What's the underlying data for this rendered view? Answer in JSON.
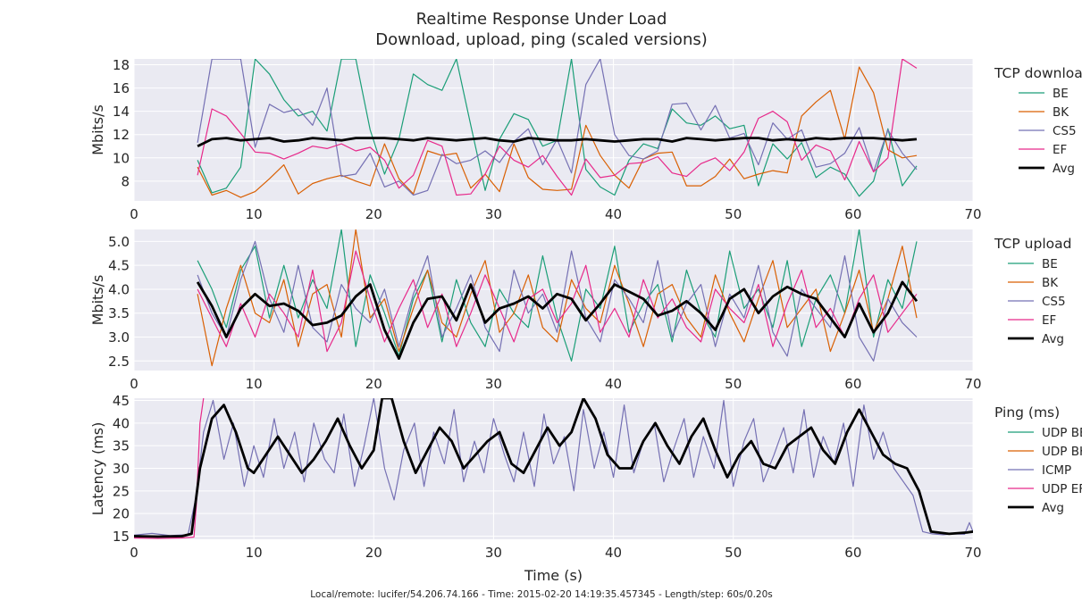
{
  "title": "Realtime Response Under Load",
  "subtitle": "Download, upload, ping (scaled versions)",
  "footer": "Local/remote: lucifer/54.206.74.166 - Time: 2015-02-20 14:19:35.457345 - Length/step: 60s/0.20s",
  "colors": {
    "BE": "#1b9e77",
    "BK": "#d95f02",
    "CS5": "#7570b3",
    "EF": "#e7298a",
    "Avg": "#000000",
    "background": "#eaeaf2",
    "grid": "#ffffff"
  },
  "chart_data": [
    {
      "type": "line",
      "id": "download",
      "ylabel": "Mbits/s",
      "xlim": [
        0,
        70
      ],
      "ylim": [
        6.3,
        18.5
      ],
      "xticks": [
        0,
        10,
        20,
        30,
        40,
        50,
        60,
        70
      ],
      "yticks": [
        8,
        10,
        12,
        14,
        16,
        18
      ],
      "legend_title": "TCP download",
      "legend_position": "right",
      "grid": true,
      "x": [
        5.3,
        6.5,
        7.7,
        8.9,
        10.1,
        11.3,
        12.5,
        13.7,
        14.9,
        16.1,
        17.3,
        18.5,
        19.7,
        20.9,
        22.1,
        23.3,
        24.5,
        25.7,
        26.9,
        28.1,
        29.3,
        30.5,
        31.7,
        32.9,
        34.1,
        35.3,
        36.5,
        37.7,
        38.9,
        40.1,
        41.3,
        42.5,
        43.7,
        44.9,
        46.1,
        47.3,
        48.5,
        49.7,
        50.9,
        52.1,
        53.3,
        54.5,
        55.7,
        56.9,
        58.1,
        59.3,
        60.5,
        61.7,
        62.9,
        64.1,
        65.3
      ],
      "series": [
        {
          "name": "BE",
          "values": [
            9.8,
            7.0,
            7.4,
            9.2,
            18.5,
            17.2,
            15.0,
            13.6,
            14.0,
            12.3,
            18.5,
            18.5,
            12.4,
            8.6,
            11.6,
            17.2,
            16.3,
            15.8,
            18.5,
            12.8,
            7.2,
            11.6,
            13.8,
            13.3,
            11.0,
            11.5,
            18.5,
            9.0,
            7.5,
            6.8,
            9.8,
            11.2,
            10.8,
            14.2,
            13.0,
            12.8,
            13.6,
            12.5,
            12.8,
            7.6,
            11.2,
            9.9,
            11.3,
            8.3,
            9.2,
            8.6,
            6.7,
            8.0,
            12.5,
            7.6,
            9.3
          ]
        },
        {
          "name": "BK",
          "values": [
            9.2,
            6.8,
            7.2,
            6.6,
            7.1,
            8.2,
            9.4,
            6.9,
            7.8,
            8.2,
            8.5,
            8.0,
            7.6,
            11.2,
            8.2,
            6.9,
            10.6,
            10.2,
            10.4,
            7.4,
            8.6,
            7.1,
            11.2,
            8.3,
            7.3,
            7.2,
            7.3,
            12.8,
            10.2,
            8.5,
            7.4,
            9.9,
            10.4,
            10.5,
            7.6,
            7.6,
            8.4,
            9.9,
            8.2,
            8.6,
            8.9,
            8.7,
            13.6,
            14.8,
            15.8,
            11.6,
            17.8,
            15.6,
            10.7,
            10.0,
            10.2
          ]
        },
        {
          "name": "CS5",
          "values": [
            11.3,
            18.5,
            18.5,
            18.5,
            10.9,
            14.6,
            13.9,
            14.2,
            12.8,
            16.0,
            8.4,
            8.6,
            10.4,
            7.5,
            8.0,
            6.8,
            7.2,
            10.3,
            9.5,
            9.8,
            10.6,
            9.6,
            11.4,
            12.5,
            9.4,
            11.6,
            8.7,
            16.3,
            18.5,
            12.0,
            10.2,
            9.9,
            10.6,
            14.6,
            14.7,
            12.4,
            14.5,
            11.7,
            12.1,
            9.4,
            13.0,
            11.6,
            12.4,
            9.2,
            9.5,
            10.4,
            12.6,
            8.8,
            12.4,
            10.4,
            9.0
          ]
        },
        {
          "name": "EF",
          "values": [
            8.5,
            14.2,
            13.6,
            12.1,
            10.5,
            10.4,
            9.9,
            10.4,
            11.0,
            10.8,
            11.2,
            10.6,
            10.9,
            9.8,
            7.4,
            8.5,
            11.5,
            11.0,
            6.8,
            6.9,
            8.6,
            11.0,
            9.8,
            9.2,
            10.2,
            8.4,
            6.8,
            9.9,
            8.3,
            8.5,
            9.5,
            9.6,
            10.1,
            8.7,
            8.4,
            9.5,
            10.0,
            8.9,
            10.5,
            13.4,
            14.0,
            13.1,
            9.8,
            11.1,
            10.6,
            8.1,
            11.4,
            8.8,
            10.0,
            18.5,
            17.7
          ]
        },
        {
          "name": "Avg",
          "values": [
            11.0,
            11.6,
            11.7,
            11.5,
            11.6,
            11.7,
            11.4,
            11.5,
            11.7,
            11.6,
            11.5,
            11.7,
            11.7,
            11.7,
            11.6,
            11.5,
            11.7,
            11.6,
            11.5,
            11.6,
            11.7,
            11.5,
            11.4,
            11.7,
            11.6,
            11.5,
            11.5,
            11.6,
            11.5,
            11.4,
            11.5,
            11.6,
            11.6,
            11.4,
            11.7,
            11.6,
            11.5,
            11.6,
            11.7,
            11.7,
            11.5,
            11.6,
            11.5,
            11.7,
            11.6,
            11.7,
            11.7,
            11.7,
            11.6,
            11.5,
            11.6
          ]
        }
      ]
    },
    {
      "type": "line",
      "id": "upload",
      "ylabel": "Mbits/s",
      "xlim": [
        0,
        70
      ],
      "ylim": [
        2.3,
        5.25
      ],
      "xticks": [
        0,
        10,
        20,
        30,
        40,
        50,
        60,
        70
      ],
      "yticks": [
        2.5,
        3.0,
        3.5,
        4.0,
        4.5,
        5.0
      ],
      "legend_title": "TCP upload",
      "legend_position": "right",
      "grid": true,
      "x": [
        5.3,
        6.5,
        7.7,
        8.9,
        10.1,
        11.3,
        12.5,
        13.7,
        14.9,
        16.1,
        17.3,
        18.5,
        19.7,
        20.9,
        22.1,
        23.3,
        24.5,
        25.7,
        26.9,
        28.1,
        29.3,
        30.5,
        31.7,
        32.9,
        34.1,
        35.3,
        36.5,
        37.7,
        38.9,
        40.1,
        41.3,
        42.5,
        43.7,
        44.9,
        46.1,
        47.3,
        48.5,
        49.7,
        50.9,
        52.1,
        53.3,
        54.5,
        55.7,
        56.9,
        58.1,
        59.3,
        60.5,
        61.7,
        62.9,
        64.1,
        65.3
      ],
      "series": [
        {
          "name": "BE",
          "values": [
            4.6,
            4.0,
            3.2,
            4.4,
            4.9,
            3.4,
            4.5,
            3.4,
            4.2,
            3.6,
            5.25,
            2.8,
            4.3,
            3.5,
            2.6,
            3.8,
            4.4,
            2.9,
            4.2,
            3.3,
            2.8,
            4.0,
            3.5,
            3.2,
            4.7,
            3.4,
            2.5,
            4.0,
            3.6,
            4.9,
            3.1,
            3.7,
            4.1,
            2.9,
            4.4,
            3.5,
            3.0,
            4.8,
            3.6,
            4.0,
            3.2,
            4.6,
            2.8,
            3.8,
            4.3,
            3.5,
            5.25,
            3.0,
            4.2,
            3.6,
            5.0
          ]
        },
        {
          "name": "BK",
          "values": [
            3.9,
            2.4,
            3.6,
            4.5,
            3.5,
            3.3,
            4.2,
            2.8,
            3.9,
            4.1,
            3.0,
            5.25,
            3.4,
            3.8,
            2.7,
            3.6,
            4.4,
            3.3,
            3.0,
            3.9,
            4.6,
            3.1,
            3.5,
            4.3,
            3.2,
            2.9,
            4.2,
            3.6,
            3.3,
            4.5,
            3.7,
            2.8,
            3.9,
            4.1,
            3.4,
            3.0,
            4.3,
            3.5,
            2.9,
            3.8,
            4.6,
            3.2,
            3.6,
            4.0,
            2.7,
            3.5,
            4.4,
            3.1,
            3.8,
            4.9,
            3.4
          ]
        },
        {
          "name": "CS5",
          "values": [
            4.3,
            3.5,
            3.0,
            4.2,
            5.0,
            3.8,
            3.1,
            4.5,
            3.2,
            2.9,
            4.1,
            3.6,
            3.3,
            4.0,
            2.8,
            3.9,
            4.7,
            3.0,
            3.6,
            4.3,
            3.2,
            2.7,
            4.4,
            3.5,
            3.9,
            3.1,
            4.8,
            3.4,
            2.9,
            4.2,
            3.8,
            3.3,
            4.6,
            3.0,
            3.7,
            4.1,
            2.8,
            3.9,
            3.4,
            4.5,
            3.1,
            2.6,
            4.0,
            3.6,
            3.2,
            4.7,
            3.0,
            2.5,
            3.8,
            3.3,
            3.0
          ]
        },
        {
          "name": "EF",
          "values": [
            4.0,
            3.4,
            2.8,
            3.7,
            3.0,
            3.9,
            3.5,
            3.0,
            4.4,
            2.7,
            3.3,
            4.8,
            3.8,
            2.9,
            3.6,
            4.2,
            3.2,
            3.9,
            2.8,
            3.5,
            4.3,
            3.6,
            2.9,
            3.8,
            4.0,
            3.3,
            3.7,
            4.5,
            3.1,
            3.6,
            3.0,
            4.2,
            3.4,
            3.8,
            3.2,
            2.9,
            4.0,
            3.6,
            3.3,
            4.1,
            2.8,
            3.7,
            4.4,
            3.2,
            3.6,
            3.0,
            3.8,
            4.3,
            3.1,
            3.5,
            3.9
          ]
        },
        {
          "name": "Avg",
          "values": [
            4.15,
            3.65,
            3.0,
            3.6,
            3.9,
            3.65,
            3.7,
            3.55,
            3.25,
            3.3,
            3.45,
            3.85,
            4.1,
            3.15,
            2.55,
            3.3,
            3.8,
            3.85,
            3.35,
            4.1,
            3.3,
            3.6,
            3.7,
            3.85,
            3.6,
            3.9,
            3.8,
            3.35,
            3.7,
            4.1,
            3.95,
            3.8,
            3.45,
            3.55,
            3.75,
            3.5,
            3.15,
            3.8,
            4.0,
            3.5,
            3.85,
            4.05,
            3.9,
            3.8,
            3.4,
            3.0,
            3.7,
            3.1,
            3.5,
            4.15,
            3.75
          ]
        }
      ]
    },
    {
      "type": "line",
      "id": "ping",
      "ylabel": "Latency (ms)",
      "xlabel": "Time (s)",
      "xlim": [
        0,
        70
      ],
      "ylim": [
        14.3,
        45.5
      ],
      "xticks": [
        0,
        10,
        20,
        30,
        40,
        50,
        60,
        70
      ],
      "yticks": [
        15,
        20,
        25,
        30,
        35,
        40,
        45
      ],
      "legend_title": "Ping (ms)",
      "legend_position": "right",
      "grid": true,
      "series": [
        {
          "name": "UDP BE",
          "x": [],
          "values": []
        },
        {
          "name": "UDP BK",
          "x": [],
          "values": []
        },
        {
          "name": "ICMP",
          "x": [
            0,
            1.5,
            3,
            4.5,
            5.2,
            5.8,
            6.6,
            7.5,
            8.3,
            9.2,
            10,
            10.8,
            11.7,
            12.5,
            13.4,
            14.2,
            15,
            15.9,
            16.7,
            17.5,
            18.4,
            19.2,
            20,
            20.9,
            21.7,
            22.5,
            23.4,
            24.2,
            25,
            25.9,
            26.7,
            27.5,
            28.4,
            29.2,
            30,
            30.9,
            31.7,
            32.5,
            33.4,
            34.2,
            35,
            35.9,
            36.7,
            37.5,
            38.4,
            39.2,
            40,
            40.9,
            41.7,
            42.5,
            43.4,
            44.2,
            45,
            45.9,
            46.7,
            47.5,
            48.4,
            49.2,
            50,
            50.9,
            51.7,
            52.5,
            53.4,
            54.2,
            55,
            55.9,
            56.7,
            57.5,
            58.4,
            59.2,
            60,
            60.9,
            61.7,
            62.5,
            63.4,
            64.2,
            65,
            65.8,
            66.6,
            67.5,
            68.4,
            69.3,
            69.7,
            70
          ],
          "values": [
            15.2,
            15.6,
            15.1,
            15.3,
            24,
            38,
            45,
            32,
            40,
            26,
            35,
            28,
            41,
            30,
            38,
            27,
            40,
            32,
            29,
            42,
            26,
            35,
            45.5,
            30,
            23,
            34,
            40,
            26,
            38,
            31,
            43,
            27,
            36,
            29,
            41,
            33,
            27,
            38,
            26,
            42,
            31,
            37,
            25,
            43,
            30,
            38,
            28,
            44,
            29,
            36,
            40,
            27,
            34,
            41,
            28,
            37,
            30,
            45,
            26,
            36,
            41,
            27,
            33,
            39,
            29,
            43,
            28,
            37,
            31,
            40,
            26,
            44,
            32,
            38,
            30,
            27,
            24,
            16,
            15.5,
            15.3,
            15.5,
            15.4,
            18,
            16
          ]
        },
        {
          "name": "UDP EF",
          "x": [
            0,
            2,
            4,
            5.0,
            5.2,
            5.5,
            5.8
          ],
          "values": [
            14.6,
            14.5,
            14.6,
            14.8,
            22,
            40,
            45.5
          ]
        },
        {
          "name": "Avg",
          "x": [
            0,
            2,
            4,
            4.8,
            5.5,
            6.5,
            7.5,
            8.5,
            9.5,
            10,
            11,
            12,
            13,
            14,
            15,
            16,
            17,
            18,
            19,
            20,
            20.7,
            21.5,
            22.5,
            23.5,
            24.5,
            25.5,
            26.5,
            27.5,
            28.5,
            29.5,
            30.5,
            31.5,
            32.5,
            33.5,
            34.5,
            35.5,
            36.5,
            37.5,
            38.5,
            39.5,
            40.5,
            41.5,
            42.5,
            43.5,
            44.5,
            45.5,
            46.5,
            47.5,
            48.5,
            49.5,
            50.5,
            51.5,
            52.5,
            53.5,
            54.5,
            55.5,
            56.5,
            57.5,
            58.5,
            59.5,
            60.5,
            61.5,
            62.5,
            63.5,
            64.5,
            65.5,
            66.5,
            68,
            69.5,
            70
          ],
          "values": [
            15.0,
            14.9,
            15.0,
            15.5,
            30,
            41,
            44,
            38,
            30,
            29,
            33,
            37,
            33,
            29,
            32,
            36,
            41,
            35,
            30,
            34,
            45.5,
            45.5,
            36,
            29,
            34,
            39,
            36,
            30,
            33,
            36,
            38,
            31,
            29,
            34,
            39,
            35,
            38,
            45.5,
            41,
            33,
            30,
            30,
            36,
            40,
            35,
            31,
            37,
            41,
            34,
            28,
            33,
            36,
            31,
            30,
            35,
            37,
            39,
            34,
            31,
            38,
            43,
            38,
            33,
            31,
            30,
            25,
            16,
            15.5,
            15.8,
            16
          ]
        }
      ]
    }
  ]
}
